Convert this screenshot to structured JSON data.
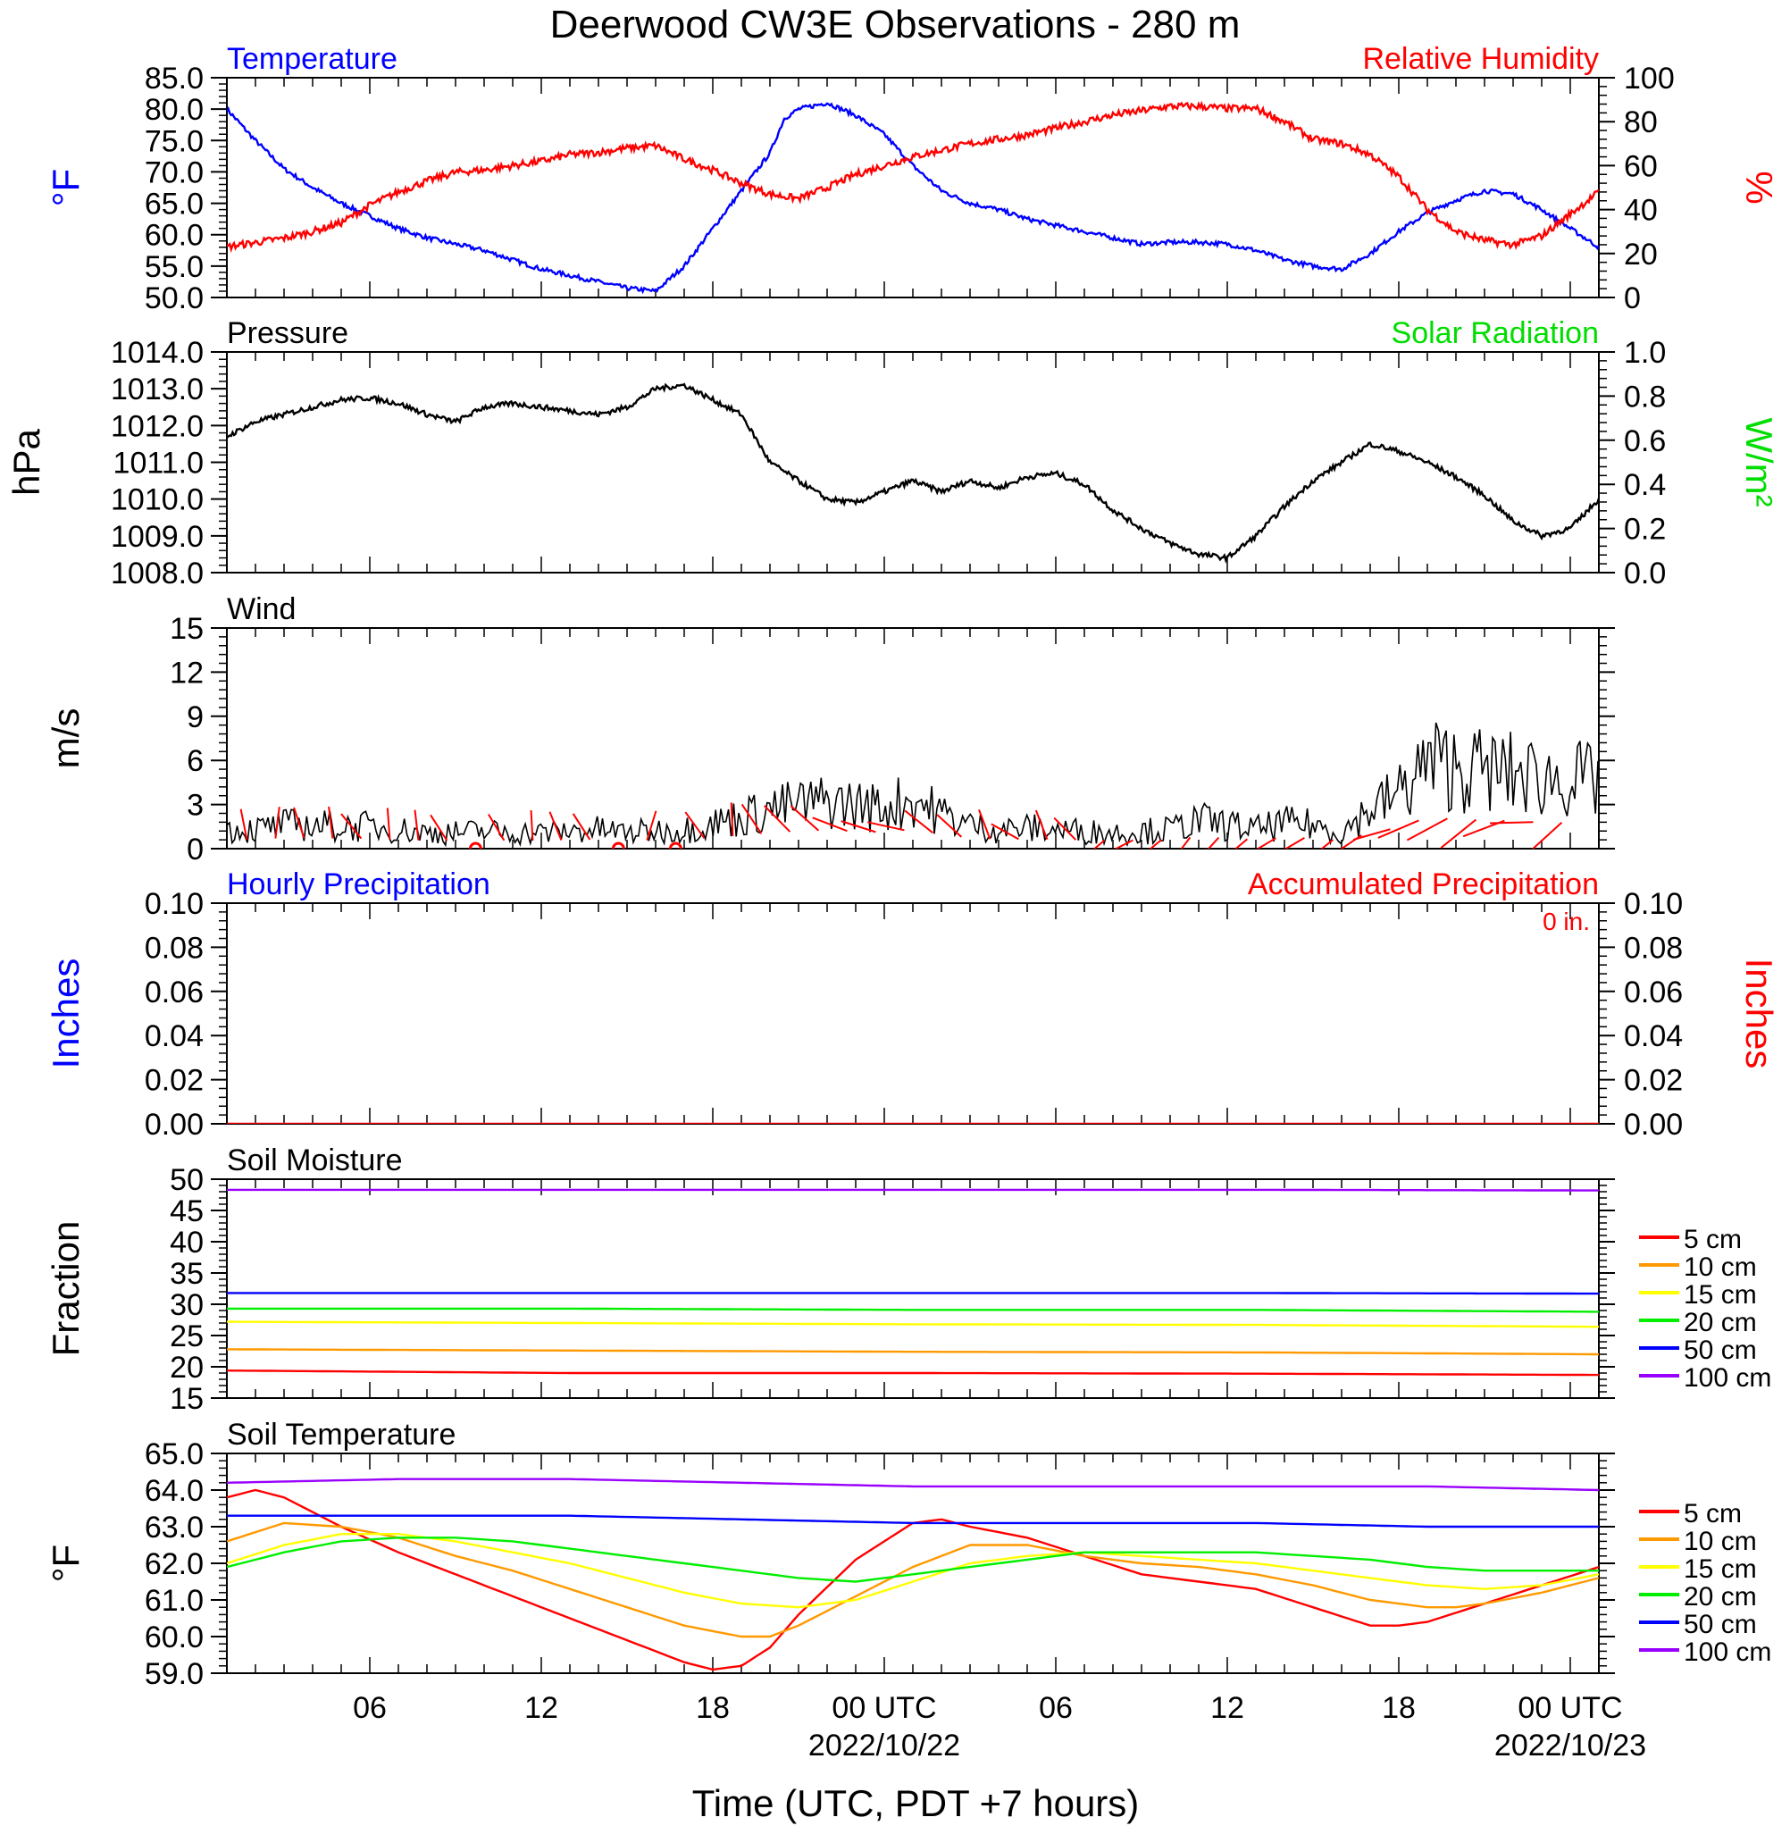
{
  "title": "Deerwood CW3E Observations - 280 m",
  "xlabel": "Time (UTC, PDT +7 hours)",
  "time_axis": {
    "range_hours": [
      0,
      48
    ],
    "ticks": [
      {
        "h": 5,
        "label": "06",
        "date": ""
      },
      {
        "h": 11,
        "label": "12",
        "date": ""
      },
      {
        "h": 17,
        "label": "18",
        "date": ""
      },
      {
        "h": 23,
        "label": "00 UTC",
        "date": "2022/10/22"
      },
      {
        "h": 29,
        "label": "06",
        "date": ""
      },
      {
        "h": 35,
        "label": "12",
        "date": ""
      },
      {
        "h": 41,
        "label": "18",
        "date": ""
      },
      {
        "h": 47,
        "label": "00 UTC",
        "date": "2022/10/23"
      }
    ]
  },
  "colors": {
    "temperature": "#0000ff",
    "humidity": "#ff0000",
    "pressure": "#000000",
    "solar": "#00dd00",
    "wind": "#000000",
    "barbs": "#ff0000",
    "hourly_precip": "#0000ff",
    "accum_precip": "#ff0000",
    "depths": {
      "5 cm": "#ff0000",
      "10 cm": "#ff9900",
      "15 cm": "#ffff00",
      "20 cm": "#00ee00",
      "50 cm": "#0000ff",
      "100 cm": "#9900ff"
    }
  },
  "chart_data": [
    {
      "id": "temp_rh",
      "type": "line",
      "left_title": "Temperature",
      "right_title": "Relative Humidity",
      "ylabel_left": "°F",
      "ylabel_right": "%",
      "ylim_left": [
        50,
        85
      ],
      "yticks_left": [
        "50.0",
        "55.0",
        "60.0",
        "65.0",
        "70.0",
        "75.0",
        "80.0",
        "85.0"
      ],
      "ylim_right": [
        0,
        100
      ],
      "yticks_right": [
        "0",
        "20",
        "40",
        "60",
        "80",
        "100"
      ],
      "series": [
        {
          "key": "temperature",
          "axis": "left",
          "x": [
            0,
            1,
            2,
            3,
            4,
            5,
            6,
            7,
            8,
            9,
            10,
            11,
            12,
            13,
            14,
            15,
            16,
            17,
            18,
            19,
            19.5,
            20,
            21,
            22,
            23,
            24,
            25,
            26,
            27,
            28,
            29,
            30,
            31,
            32,
            33,
            34,
            35,
            36,
            37,
            38,
            39,
            40,
            41,
            42,
            43,
            44,
            45,
            46,
            47,
            48
          ],
          "y": [
            80,
            75,
            70.5,
            67.5,
            65,
            63,
            61,
            59.5,
            58.5,
            57.5,
            56,
            54.5,
            53.5,
            52.5,
            51.5,
            51,
            55,
            61,
            67,
            73,
            78.5,
            80,
            81,
            79,
            76,
            71,
            67,
            65,
            64,
            62.5,
            61.5,
            60.5,
            59.5,
            58.5,
            58.8,
            58.8,
            58.5,
            57.5,
            56,
            55,
            54.5,
            57,
            60.5,
            63.5,
            65.5,
            67,
            66.5,
            64,
            61,
            58
          ]
        },
        {
          "key": "humidity",
          "axis": "right",
          "x": [
            0,
            1,
            2,
            3,
            4,
            5,
            6,
            7,
            8,
            9,
            10,
            11,
            12,
            13,
            14,
            15,
            16,
            17,
            18,
            19,
            20,
            21,
            22,
            23,
            24,
            25,
            26,
            27,
            28,
            29,
            30,
            31,
            32,
            33,
            34,
            35,
            36,
            37,
            38,
            39,
            40,
            41,
            42,
            43,
            44,
            45,
            46,
            47,
            48
          ],
          "y": [
            23,
            25,
            27,
            30,
            34,
            42,
            48,
            53,
            57,
            58,
            60,
            62,
            65,
            66,
            68,
            69,
            63,
            58,
            52,
            47,
            45,
            50,
            56,
            60,
            64,
            67,
            70,
            72,
            74,
            77,
            80,
            83,
            85,
            87,
            87,
            86,
            86,
            80,
            72,
            70,
            65,
            55,
            40,
            30,
            26,
            24,
            28,
            38,
            48
          ]
        }
      ]
    },
    {
      "id": "pressure",
      "type": "line",
      "left_title": "Pressure",
      "right_title": "Solar Radiation",
      "ylabel_left": "hPa",
      "ylabel_right": "W/m²",
      "ylim_left": [
        1008,
        1014
      ],
      "yticks_left": [
        "1008.0",
        "1009.0",
        "1010.0",
        "1011.0",
        "1012.0",
        "1013.0",
        "1014.0"
      ],
      "ylim_right": [
        0,
        1
      ],
      "yticks_right": [
        "0.0",
        "0.2",
        "0.4",
        "0.6",
        "0.8",
        "1.0"
      ],
      "series": [
        {
          "key": "pressure",
          "axis": "left",
          "x": [
            0,
            1,
            2,
            3,
            4,
            5,
            6,
            7,
            8,
            9,
            10,
            11,
            12,
            13,
            14,
            15,
            16,
            17,
            18,
            19,
            20,
            21,
            22,
            23,
            24,
            25,
            26,
            27,
            28,
            29,
            30,
            31,
            32,
            33,
            34,
            35,
            36,
            37,
            38,
            39,
            40,
            41,
            42,
            43,
            44,
            45,
            46,
            47,
            48
          ],
          "y": [
            1011.7,
            1012.1,
            1012.3,
            1012.5,
            1012.7,
            1012.75,
            1012.6,
            1012.3,
            1012.1,
            1012.5,
            1012.6,
            1012.5,
            1012.4,
            1012.3,
            1012.5,
            1013.0,
            1013.1,
            1012.7,
            1012.3,
            1011.0,
            1010.5,
            1010.0,
            1009.9,
            1010.2,
            1010.5,
            1010.2,
            1010.5,
            1010.3,
            1010.6,
            1010.7,
            1010.4,
            1009.7,
            1009.2,
            1008.8,
            1008.5,
            1008.4,
            1009.0,
            1009.8,
            1010.5,
            1011.0,
            1011.5,
            1011.3,
            1011.0,
            1010.6,
            1010.1,
            1009.4,
            1009.0,
            1009.2,
            1010.0
          ]
        }
      ]
    },
    {
      "id": "wind",
      "type": "line",
      "left_title": "Wind",
      "ylabel_left": "m/s",
      "ylim_left": [
        0,
        15
      ],
      "yticks_left": [
        "0",
        "3",
        "6",
        "9",
        "12",
        "15"
      ],
      "series": [
        {
          "key": "wind",
          "axis": "left",
          "x": [
            0,
            1,
            2,
            3,
            4,
            5,
            6,
            7,
            8,
            9,
            10,
            11,
            12,
            13,
            14,
            15,
            16,
            17,
            18,
            19,
            20,
            21,
            22,
            23,
            24,
            25,
            26,
            27,
            28,
            29,
            30,
            31,
            32,
            33,
            34,
            35,
            36,
            37,
            38,
            39,
            40,
            41,
            42,
            43,
            44,
            45,
            46,
            47,
            48
          ],
          "y": [
            1.2,
            1.2,
            1.5,
            1.5,
            1.4,
            1.4,
            1.2,
            1.0,
            1.0,
            1.1,
            1.0,
            1.0,
            1.1,
            1.2,
            1.0,
            1.1,
            1.2,
            1.6,
            2.0,
            2.5,
            2.8,
            3.0,
            2.8,
            2.6,
            3.2,
            2.2,
            1.5,
            1.2,
            1.3,
            1.2,
            1.1,
            1.0,
            1.1,
            1.2,
            1.8,
            1.5,
            1.2,
            1.6,
            1.5,
            1.0,
            2.5,
            3.5,
            5.5,
            5.2,
            5.0,
            4.8,
            4.5,
            4.5,
            4.2
          ]
        }
      ]
    },
    {
      "id": "precip",
      "type": "line",
      "left_title": "Hourly Precipitation",
      "right_title": "Accumulated Precipitation",
      "annotation": "0 in.",
      "ylabel_left": "Inches",
      "ylabel_right": "Inches",
      "ylim_left": [
        0,
        0.1
      ],
      "yticks_left": [
        "0.00",
        "0.02",
        "0.04",
        "0.06",
        "0.08",
        "0.10"
      ],
      "ylim_right": [
        0,
        0.1
      ],
      "yticks_right": [
        "0.00",
        "0.02",
        "0.04",
        "0.06",
        "0.08",
        "0.10"
      ],
      "series": [
        {
          "key": "accum_precip",
          "axis": "left",
          "x": [
            0,
            48
          ],
          "y": [
            0,
            0
          ]
        }
      ]
    },
    {
      "id": "soil_moisture",
      "type": "line",
      "left_title": "Soil Moisture",
      "ylabel_left": "Fraction",
      "ylim_left": [
        15,
        50
      ],
      "yticks_left": [
        "15",
        "20",
        "25",
        "30",
        "35",
        "40",
        "45",
        "50"
      ],
      "legend": [
        "5 cm",
        "10 cm",
        "15 cm",
        "20 cm",
        "50 cm",
        "100 cm"
      ],
      "series": [
        {
          "name": "5 cm",
          "x": [
            0,
            12,
            24,
            36,
            48
          ],
          "y": [
            19.4,
            19.0,
            19.0,
            18.9,
            18.7
          ]
        },
        {
          "name": "10 cm",
          "x": [
            0,
            12,
            24,
            36,
            48
          ],
          "y": [
            22.8,
            22.6,
            22.4,
            22.3,
            22.0
          ]
        },
        {
          "name": "15 cm",
          "x": [
            0,
            12,
            24,
            36,
            48
          ],
          "y": [
            27.2,
            27.0,
            26.8,
            26.7,
            26.4
          ]
        },
        {
          "name": "20 cm",
          "x": [
            0,
            12,
            24,
            36,
            48
          ],
          "y": [
            29.3,
            29.3,
            29.1,
            29.1,
            28.8
          ]
        },
        {
          "name": "50 cm",
          "x": [
            0,
            12,
            24,
            36,
            48
          ],
          "y": [
            31.8,
            31.8,
            31.8,
            31.8,
            31.7
          ]
        },
        {
          "name": "100 cm",
          "x": [
            0,
            12,
            24,
            36,
            48
          ],
          "y": [
            48.3,
            48.3,
            48.3,
            48.3,
            48.2
          ]
        }
      ]
    },
    {
      "id": "soil_temp",
      "type": "line",
      "left_title": "Soil Temperature",
      "ylabel_left": "°F",
      "ylim_left": [
        59,
        65
      ],
      "yticks_left": [
        "59.0",
        "60.0",
        "61.0",
        "62.0",
        "63.0",
        "64.0",
        "65.0"
      ],
      "legend": [
        "5 cm",
        "10 cm",
        "15 cm",
        "20 cm",
        "50 cm",
        "100 cm"
      ],
      "series": [
        {
          "name": "5 cm",
          "x": [
            0,
            1,
            2,
            4,
            6,
            8,
            10,
            12,
            14,
            16,
            17,
            18,
            19,
            20,
            22,
            24,
            25,
            26,
            28,
            30,
            32,
            34,
            36,
            38,
            40,
            41,
            42,
            44,
            46,
            48
          ],
          "y": [
            63.8,
            64.0,
            63.8,
            63.0,
            62.3,
            61.7,
            61.1,
            60.5,
            59.9,
            59.3,
            59.1,
            59.2,
            59.7,
            60.6,
            62.1,
            63.1,
            63.2,
            63.0,
            62.7,
            62.2,
            61.7,
            61.5,
            61.3,
            60.8,
            60.3,
            60.3,
            60.4,
            60.9,
            61.4,
            61.9
          ]
        },
        {
          "name": "10 cm",
          "x": [
            0,
            2,
            4,
            6,
            8,
            10,
            12,
            14,
            16,
            18,
            19,
            20,
            22,
            24,
            26,
            28,
            30,
            32,
            34,
            36,
            38,
            40,
            42,
            43,
            44,
            46,
            48
          ],
          "y": [
            62.6,
            63.1,
            63.0,
            62.7,
            62.2,
            61.8,
            61.3,
            60.8,
            60.3,
            60.0,
            60.0,
            60.3,
            61.1,
            61.9,
            62.5,
            62.5,
            62.2,
            62.0,
            61.9,
            61.7,
            61.4,
            61.0,
            60.8,
            60.8,
            60.9,
            61.2,
            61.6
          ]
        },
        {
          "name": "15 cm",
          "x": [
            0,
            2,
            4,
            6,
            8,
            10,
            12,
            14,
            16,
            18,
            20,
            22,
            24,
            26,
            28,
            30,
            32,
            34,
            36,
            38,
            40,
            42,
            44,
            46,
            48
          ],
          "y": [
            62.0,
            62.5,
            62.8,
            62.8,
            62.6,
            62.3,
            62.0,
            61.6,
            61.2,
            60.9,
            60.8,
            61.0,
            61.5,
            62.0,
            62.2,
            62.3,
            62.2,
            62.1,
            62.0,
            61.8,
            61.6,
            61.4,
            61.3,
            61.4,
            61.7
          ]
        },
        {
          "name": "20 cm",
          "x": [
            0,
            2,
            4,
            6,
            8,
            10,
            12,
            14,
            16,
            18,
            20,
            22,
            24,
            26,
            28,
            30,
            32,
            34,
            36,
            38,
            40,
            42,
            44,
            46,
            48
          ],
          "y": [
            61.9,
            62.3,
            62.6,
            62.7,
            62.7,
            62.6,
            62.4,
            62.2,
            62.0,
            61.8,
            61.6,
            61.5,
            61.7,
            61.9,
            62.1,
            62.3,
            62.3,
            62.3,
            62.3,
            62.2,
            62.1,
            61.9,
            61.8,
            61.8,
            61.8
          ]
        },
        {
          "name": "50 cm",
          "x": [
            0,
            6,
            12,
            18,
            24,
            30,
            36,
            42,
            48
          ],
          "y": [
            63.3,
            63.3,
            63.3,
            63.2,
            63.1,
            63.1,
            63.1,
            63.0,
            63.0
          ]
        },
        {
          "name": "100 cm",
          "x": [
            0,
            6,
            12,
            18,
            24,
            30,
            36,
            42,
            48
          ],
          "y": [
            64.2,
            64.3,
            64.3,
            64.2,
            64.1,
            64.1,
            64.1,
            64.1,
            64.0
          ]
        }
      ]
    }
  ]
}
